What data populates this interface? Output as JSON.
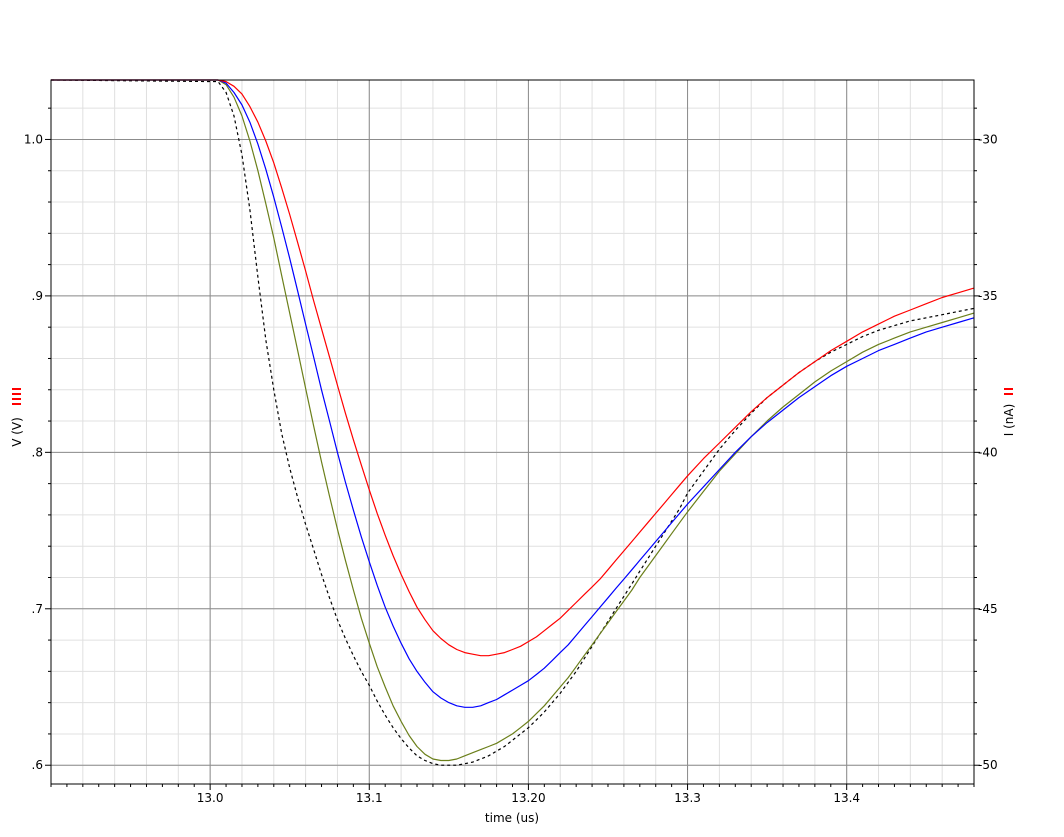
{
  "chart_data": {
    "type": "line",
    "xlabel": "time (us)",
    "ylabel_left": "V (V)",
    "ylabel_right": "I (nA)",
    "xlim": [
      12.9,
      13.48
    ],
    "ylim_left": [
      0.588,
      1.038
    ],
    "ylim_right": [
      -50.6,
      -28.1
    ],
    "x_ticks": [
      {
        "value": 13.0,
        "label": "13.0"
      },
      {
        "value": 13.1,
        "label": "13.1"
      },
      {
        "value": 13.2,
        "label": "13.20"
      },
      {
        "value": 13.3,
        "label": "13.3"
      },
      {
        "value": 13.4,
        "label": "13.4"
      }
    ],
    "y_ticks_left": [
      {
        "value": 1.0,
        "label": "1.0"
      },
      {
        "value": 0.9,
        "label": ".9"
      },
      {
        "value": 0.8,
        "label": ".8"
      },
      {
        "value": 0.7,
        "label": ".7"
      },
      {
        "value": 0.6,
        "label": ".6"
      }
    ],
    "y_ticks_right": [
      {
        "value": -30,
        "label": "-30"
      },
      {
        "value": -35,
        "label": "-35"
      },
      {
        "value": -40,
        "label": "-40"
      },
      {
        "value": -45,
        "label": "-45"
      },
      {
        "value": -50,
        "label": "-50"
      }
    ],
    "grid": true,
    "colors": {
      "major_grid": "#8c8c8c",
      "minor_grid": "#e0e0e0",
      "legend_marks": "#ff0000"
    },
    "series": [
      {
        "color": "#000000",
        "dashed": true,
        "x": [
          12.9,
          13.005,
          13.01,
          13.015,
          13.02,
          13.025,
          13.03,
          13.035,
          13.04,
          13.045,
          13.05,
          13.055,
          13.06,
          13.065,
          13.07,
          13.075,
          13.08,
          13.085,
          13.09,
          13.095,
          13.1,
          13.105,
          13.11,
          13.115,
          13.12,
          13.125,
          13.13,
          13.135,
          13.14,
          13.145,
          13.15,
          13.155,
          13.16,
          13.165,
          13.17,
          13.175,
          13.18,
          13.185,
          13.19,
          13.195,
          13.2,
          13.205,
          13.21,
          13.215,
          13.22,
          13.225,
          13.23,
          13.235,
          13.24,
          13.245,
          13.25,
          13.255,
          13.26,
          13.265,
          13.27,
          13.275,
          13.28,
          13.285,
          13.29,
          13.295,
          13.3,
          13.31,
          13.32,
          13.33,
          13.34,
          13.35,
          13.36,
          13.37,
          13.38,
          13.39,
          13.4,
          13.41,
          13.42,
          13.43,
          13.44,
          13.45,
          13.46,
          13.47,
          13.48
        ],
        "y": [
          1.038,
          1.037,
          1.03,
          1.015,
          0.99,
          0.955,
          0.912,
          0.872,
          0.84,
          0.812,
          0.79,
          0.771,
          0.754,
          0.738,
          0.722,
          0.707,
          0.693,
          0.681,
          0.67,
          0.66,
          0.651,
          0.641,
          0.632,
          0.624,
          0.617,
          0.611,
          0.606,
          0.603,
          0.601,
          0.6,
          0.6,
          0.6,
          0.601,
          0.602,
          0.604,
          0.606,
          0.609,
          0.612,
          0.616,
          0.62,
          0.624,
          0.629,
          0.634,
          0.64,
          0.646,
          0.653,
          0.66,
          0.668,
          0.676,
          0.684,
          0.692,
          0.7,
          0.708,
          0.716,
          0.724,
          0.732,
          0.74,
          0.748,
          0.756,
          0.764,
          0.774,
          0.788,
          0.802,
          0.814,
          0.825,
          0.835,
          0.843,
          0.851,
          0.858,
          0.864,
          0.869,
          0.874,
          0.878,
          0.881,
          0.884,
          0.886,
          0.888,
          0.89,
          0.892
        ]
      },
      {
        "color": "#6b7f1a",
        "dashed": false,
        "x": [
          12.9,
          13.005,
          13.01,
          13.015,
          13.02,
          13.025,
          13.03,
          13.035,
          13.04,
          13.045,
          13.05,
          13.055,
          13.06,
          13.065,
          13.07,
          13.075,
          13.08,
          13.085,
          13.09,
          13.095,
          13.1,
          13.105,
          13.11,
          13.115,
          13.12,
          13.125,
          13.13,
          13.135,
          13.14,
          13.145,
          13.15,
          13.155,
          13.16,
          13.165,
          13.17,
          13.175,
          13.18,
          13.185,
          13.19,
          13.195,
          13.2,
          13.205,
          13.21,
          13.215,
          13.22,
          13.225,
          13.23,
          13.235,
          13.24,
          13.245,
          13.25,
          13.255,
          13.26,
          13.265,
          13.27,
          13.275,
          13.28,
          13.285,
          13.29,
          13.295,
          13.3,
          13.31,
          13.32,
          13.33,
          13.34,
          13.35,
          13.36,
          13.37,
          13.38,
          13.39,
          13.4,
          13.41,
          13.42,
          13.43,
          13.44,
          13.45,
          13.46,
          13.47,
          13.48
        ],
        "y": [
          1.038,
          1.038,
          1.035,
          1.027,
          1.015,
          0.999,
          0.98,
          0.959,
          0.937,
          0.913,
          0.889,
          0.865,
          0.841,
          0.817,
          0.794,
          0.772,
          0.751,
          0.731,
          0.712,
          0.694,
          0.678,
          0.663,
          0.65,
          0.638,
          0.628,
          0.619,
          0.612,
          0.607,
          0.604,
          0.603,
          0.603,
          0.604,
          0.606,
          0.608,
          0.61,
          0.612,
          0.614,
          0.617,
          0.62,
          0.624,
          0.628,
          0.633,
          0.638,
          0.644,
          0.65,
          0.656,
          0.663,
          0.67,
          0.677,
          0.684,
          0.691,
          0.698,
          0.705,
          0.712,
          0.72,
          0.727,
          0.734,
          0.741,
          0.748,
          0.755,
          0.762,
          0.775,
          0.788,
          0.799,
          0.81,
          0.82,
          0.829,
          0.837,
          0.845,
          0.852,
          0.858,
          0.864,
          0.869,
          0.873,
          0.877,
          0.88,
          0.883,
          0.886,
          0.889
        ]
      },
      {
        "color": "#0000ff",
        "dashed": false,
        "x": [
          12.9,
          13.005,
          13.01,
          13.015,
          13.02,
          13.025,
          13.03,
          13.035,
          13.04,
          13.045,
          13.05,
          13.055,
          13.06,
          13.065,
          13.07,
          13.075,
          13.08,
          13.085,
          13.09,
          13.095,
          13.1,
          13.105,
          13.11,
          13.115,
          13.12,
          13.125,
          13.13,
          13.135,
          13.14,
          13.145,
          13.15,
          13.155,
          13.16,
          13.165,
          13.17,
          13.175,
          13.18,
          13.185,
          13.19,
          13.195,
          13.2,
          13.205,
          13.21,
          13.215,
          13.22,
          13.225,
          13.23,
          13.235,
          13.24,
          13.245,
          13.25,
          13.255,
          13.26,
          13.265,
          13.27,
          13.275,
          13.28,
          13.285,
          13.29,
          13.295,
          13.3,
          13.31,
          13.32,
          13.33,
          13.34,
          13.35,
          13.36,
          13.37,
          13.38,
          13.39,
          13.4,
          13.41,
          13.42,
          13.43,
          13.44,
          13.45,
          13.46,
          13.47,
          13.48
        ],
        "y": [
          1.038,
          1.038,
          1.036,
          1.03,
          1.022,
          1.011,
          0.997,
          0.981,
          0.963,
          0.944,
          0.924,
          0.903,
          0.882,
          0.861,
          0.84,
          0.82,
          0.8,
          0.781,
          0.763,
          0.746,
          0.73,
          0.715,
          0.701,
          0.689,
          0.678,
          0.668,
          0.66,
          0.653,
          0.647,
          0.643,
          0.64,
          0.638,
          0.637,
          0.637,
          0.638,
          0.64,
          0.642,
          0.645,
          0.648,
          0.651,
          0.654,
          0.658,
          0.662,
          0.667,
          0.672,
          0.677,
          0.683,
          0.689,
          0.695,
          0.701,
          0.707,
          0.713,
          0.719,
          0.725,
          0.731,
          0.737,
          0.743,
          0.749,
          0.755,
          0.761,
          0.767,
          0.778,
          0.789,
          0.8,
          0.81,
          0.819,
          0.827,
          0.835,
          0.842,
          0.849,
          0.855,
          0.86,
          0.865,
          0.869,
          0.873,
          0.877,
          0.88,
          0.883,
          0.886
        ]
      },
      {
        "color": "#ff0000",
        "dashed": false,
        "x": [
          12.9,
          13.005,
          13.01,
          13.015,
          13.02,
          13.025,
          13.03,
          13.035,
          13.04,
          13.045,
          13.05,
          13.055,
          13.06,
          13.065,
          13.07,
          13.075,
          13.08,
          13.085,
          13.09,
          13.095,
          13.1,
          13.105,
          13.11,
          13.115,
          13.12,
          13.125,
          13.13,
          13.135,
          13.14,
          13.145,
          13.15,
          13.155,
          13.16,
          13.165,
          13.17,
          13.175,
          13.18,
          13.185,
          13.19,
          13.195,
          13.2,
          13.205,
          13.21,
          13.215,
          13.22,
          13.225,
          13.23,
          13.235,
          13.24,
          13.245,
          13.25,
          13.255,
          13.26,
          13.265,
          13.27,
          13.275,
          13.28,
          13.285,
          13.29,
          13.295,
          13.3,
          13.31,
          13.32,
          13.33,
          13.34,
          13.35,
          13.36,
          13.37,
          13.38,
          13.39,
          13.4,
          13.41,
          13.42,
          13.43,
          13.44,
          13.45,
          13.46,
          13.47,
          13.48
        ],
        "y": [
          1.038,
          1.038,
          1.037,
          1.034,
          1.029,
          1.021,
          1.011,
          0.999,
          0.985,
          0.969,
          0.952,
          0.934,
          0.916,
          0.897,
          0.879,
          0.861,
          0.843,
          0.825,
          0.808,
          0.792,
          0.776,
          0.761,
          0.747,
          0.734,
          0.722,
          0.711,
          0.701,
          0.693,
          0.686,
          0.681,
          0.677,
          0.674,
          0.672,
          0.671,
          0.67,
          0.67,
          0.671,
          0.672,
          0.674,
          0.676,
          0.679,
          0.682,
          0.686,
          0.69,
          0.694,
          0.699,
          0.704,
          0.709,
          0.714,
          0.719,
          0.725,
          0.731,
          0.737,
          0.743,
          0.749,
          0.755,
          0.761,
          0.767,
          0.773,
          0.779,
          0.785,
          0.796,
          0.806,
          0.816,
          0.826,
          0.835,
          0.843,
          0.851,
          0.858,
          0.865,
          0.871,
          0.877,
          0.882,
          0.887,
          0.891,
          0.895,
          0.899,
          0.902,
          0.905
        ]
      }
    ]
  }
}
